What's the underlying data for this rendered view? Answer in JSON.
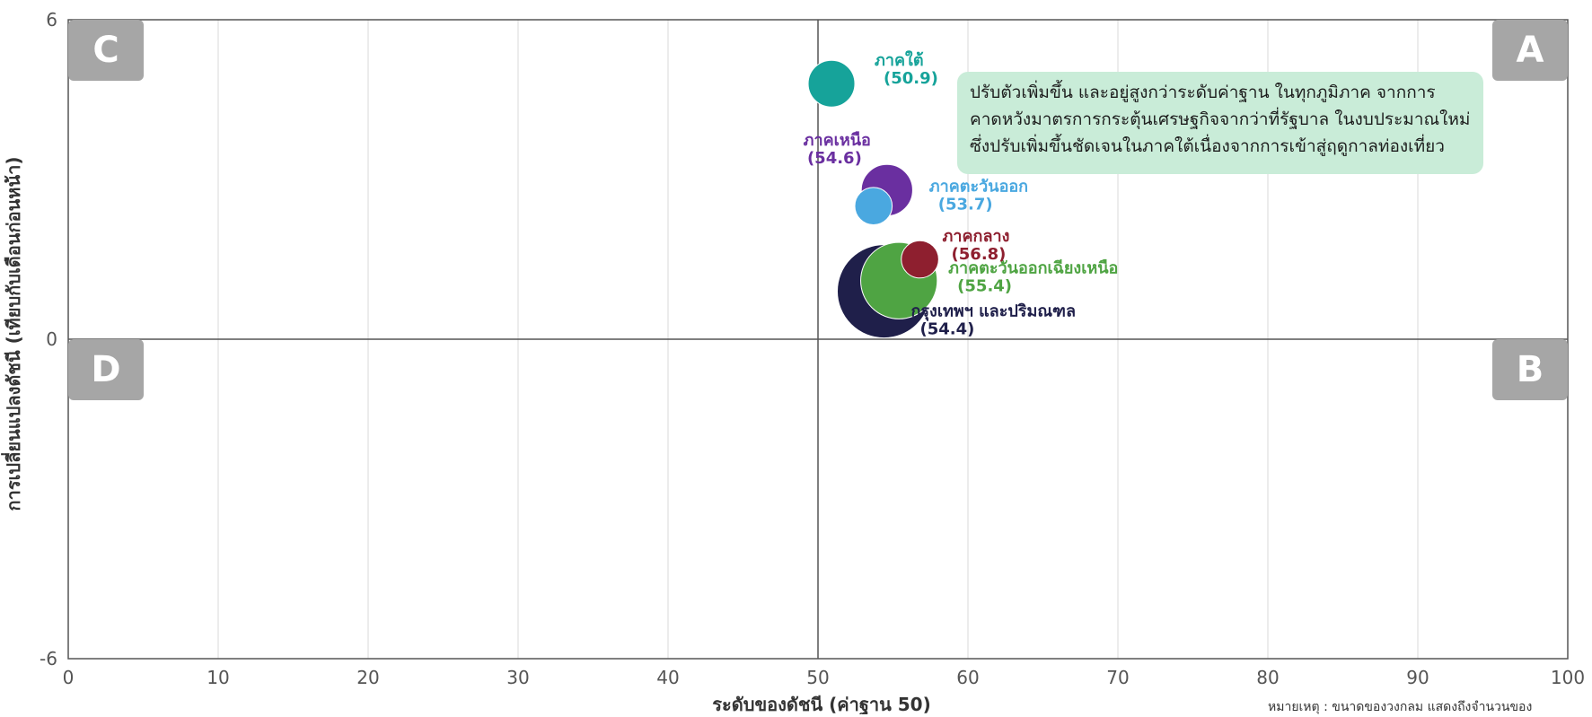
{
  "chart_data": {
    "type": "bubble",
    "xlabel": "ระดับของดัชนี (ค่าฐาน 50)",
    "ylabel": "การเปลี่ยนแปลงดัชนี (เทียบกับเดือนก่อนหน้า)",
    "xlim": [
      0,
      100
    ],
    "ylim": [
      -6,
      6
    ],
    "x_ticks": [
      0,
      10,
      20,
      30,
      40,
      50,
      60,
      70,
      80,
      90,
      100
    ],
    "y_ticks": [
      -6,
      0,
      6
    ],
    "grid": "vertical",
    "quadrants": [
      {
        "label": "A",
        "position": "top-right"
      },
      {
        "label": "B",
        "position": "bottom-right"
      },
      {
        "label": "C",
        "position": "top-left"
      },
      {
        "label": "D",
        "position": "bottom-left"
      }
    ],
    "series": [
      {
        "name": "กรุงเทพฯ และปริมณฑล",
        "value_label": "(54.4)",
        "x": 54.4,
        "y": 0.9,
        "size": 1.0,
        "color": "#1f1f4a"
      },
      {
        "name": "ภาคตะวันออกเฉียงเหนือ",
        "value_label": "(55.4)",
        "x": 55.4,
        "y": 1.1,
        "size": 0.82,
        "color": "#4fa443"
      },
      {
        "name": "ภาคกลาง",
        "value_label": "(56.8)",
        "x": 56.8,
        "y": 1.5,
        "size": 0.4,
        "color": "#8e1f2f"
      },
      {
        "name": "ภาคเหนือ",
        "value_label": "(54.6)",
        "x": 54.6,
        "y": 2.8,
        "size": 0.55,
        "color": "#6a2fa0"
      },
      {
        "name": "ภาคตะวันออก",
        "value_label": "(53.7)",
        "x": 53.7,
        "y": 2.5,
        "size": 0.4,
        "color": "#4aa8e0"
      },
      {
        "name": "ภาคใต้",
        "value_label": "(50.9)",
        "x": 50.9,
        "y": 4.8,
        "size": 0.5,
        "color": "#16a39a"
      }
    ]
  },
  "annotation": {
    "lines": [
      "ปรับตัวเพิ่มขึ้น และอยู่สูงกว่าระดับค่าฐาน ในทุกภูมิภาค จากการ",
      "คาดหวังมาตรการกระตุ้นเศรษฐกิจจากว่าที่รัฐบาล ในงบประมาณใหม่",
      "ซึ่งปรับเพิ่มขึ้นชัดเจนในภาคใต้เนื่องจากการเข้าสู่ฤดูกาลท่องเที่ยว"
    ]
  },
  "footnote": "หมายเหตุ : ขนาดของวงกลม แสดงถึงจำนวนของ",
  "colors": {
    "axis": "#555555",
    "grid": "#d9d9d9",
    "quadrant_box": "#a6a6a6",
    "annotation_bg": "#c9ecd8"
  }
}
